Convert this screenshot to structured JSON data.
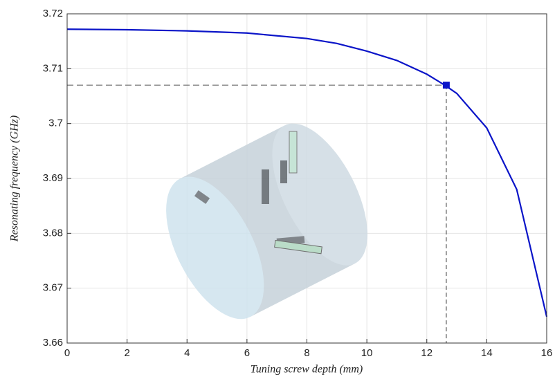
{
  "chart_data": {
    "type": "line",
    "xlabel": "Tuning screw depth (mm)",
    "ylabel": "Resonating frequency (GHz)",
    "x": [
      0,
      2,
      4,
      6,
      8,
      9,
      10,
      11,
      12,
      12.6,
      13,
      14,
      15,
      16
    ],
    "series": [
      {
        "color": "#0a14c8",
        "values": [
          3.7172,
          3.7171,
          3.7169,
          3.7165,
          3.7155,
          3.7146,
          3.7132,
          3.7115,
          3.709,
          3.707,
          3.7055,
          3.6992,
          3.688,
          3.6648
        ]
      }
    ],
    "marker": {
      "x": 12.65,
      "y": 3.707,
      "color": "#0a14c8"
    },
    "xlim": [
      0,
      16
    ],
    "xticks": [
      0,
      2,
      4,
      6,
      8,
      10,
      12,
      14,
      16
    ],
    "ylim": [
      3.66,
      3.72
    ],
    "yticks": [
      3.66,
      3.67,
      3.68,
      3.69,
      3.7,
      3.71,
      3.72
    ],
    "grid": true
  }
}
